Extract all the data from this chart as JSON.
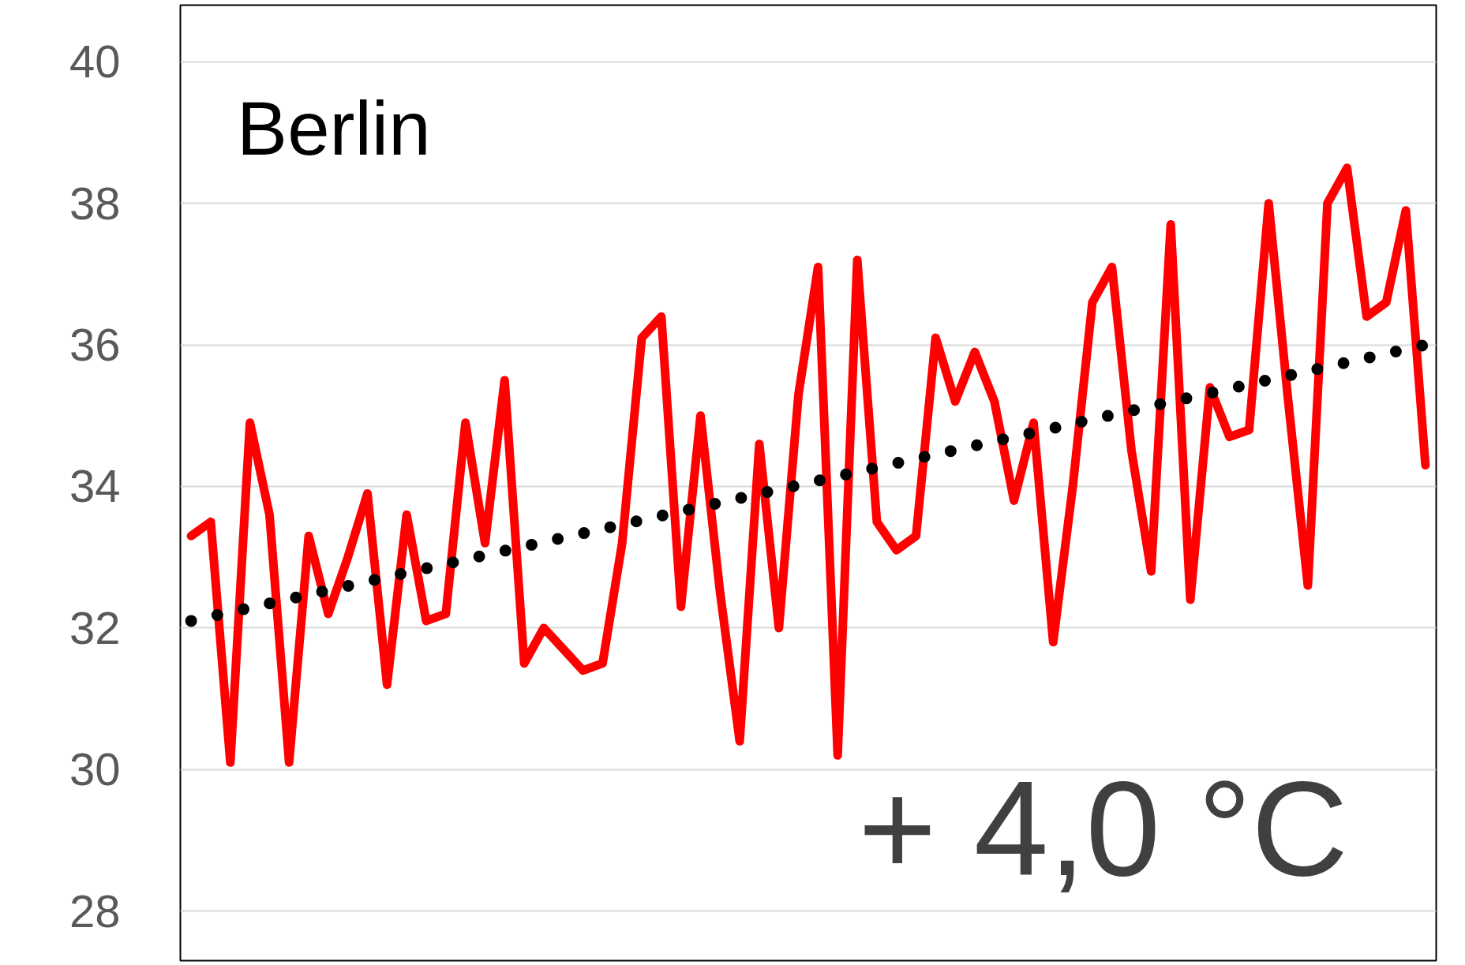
{
  "chart_data": {
    "type": "line",
    "categories": [
      null,
      null,
      null,
      null,
      null,
      null,
      null,
      null,
      null,
      null,
      null,
      null,
      null,
      null,
      null,
      null,
      null,
      null,
      null,
      null,
      null,
      null,
      null,
      null,
      null,
      null,
      null,
      null,
      null,
      null,
      null,
      null,
      null,
      null,
      null,
      null,
      null,
      null,
      null,
      null,
      null,
      null,
      null,
      null,
      null,
      null,
      null,
      null,
      null,
      null,
      null,
      null,
      null,
      null,
      null,
      null,
      null,
      null,
      null,
      null,
      null,
      null,
      null,
      null
    ],
    "series": [
      {
        "color": "#ff0000",
        "line_style": "solid",
        "values": [
          33.3,
          33.5,
          30.1,
          34.9,
          33.6,
          30.1,
          33.3,
          32.2,
          33.0,
          33.9,
          31.2,
          33.6,
          32.1,
          32.2,
          34.9,
          33.2,
          35.5,
          31.5,
          32.0,
          31.7,
          31.4,
          31.5,
          33.2,
          36.1,
          36.4,
          32.3,
          35.0,
          32.5,
          30.4,
          34.6,
          32.0,
          35.3,
          37.1,
          30.2,
          37.2,
          33.5,
          33.1,
          33.3,
          36.1,
          35.2,
          35.9,
          35.2,
          33.8,
          34.9,
          31.8,
          34.0,
          36.6,
          37.1,
          34.5,
          32.8,
          37.7,
          32.4,
          35.4,
          34.7,
          34.8,
          38.0,
          35.2,
          32.6,
          38.0,
          38.5,
          36.4,
          36.6,
          37.9,
          34.3
        ]
      },
      {
        "color": "#000000",
        "line_style": "dotted",
        "values": [
          32.1,
          null,
          null,
          null,
          null,
          null,
          null,
          null,
          null,
          null,
          null,
          null,
          null,
          null,
          null,
          null,
          null,
          null,
          null,
          null,
          null,
          null,
          null,
          null,
          null,
          null,
          null,
          null,
          null,
          null,
          null,
          null,
          null,
          null,
          null,
          null,
          null,
          null,
          null,
          null,
          null,
          null,
          null,
          null,
          null,
          null,
          null,
          null,
          null,
          null,
          null,
          null,
          null,
          null,
          null,
          null,
          null,
          null,
          null,
          null,
          null,
          null,
          null,
          36.0
        ]
      }
    ],
    "ylim": [
      27.3,
      40.8
    ],
    "yticks": [
      28,
      30,
      32,
      34,
      36,
      38,
      40
    ],
    "grid": "y",
    "tick_labels": "y",
    "annotations": [
      "Berlin",
      "+ 4,0 °C"
    ]
  }
}
